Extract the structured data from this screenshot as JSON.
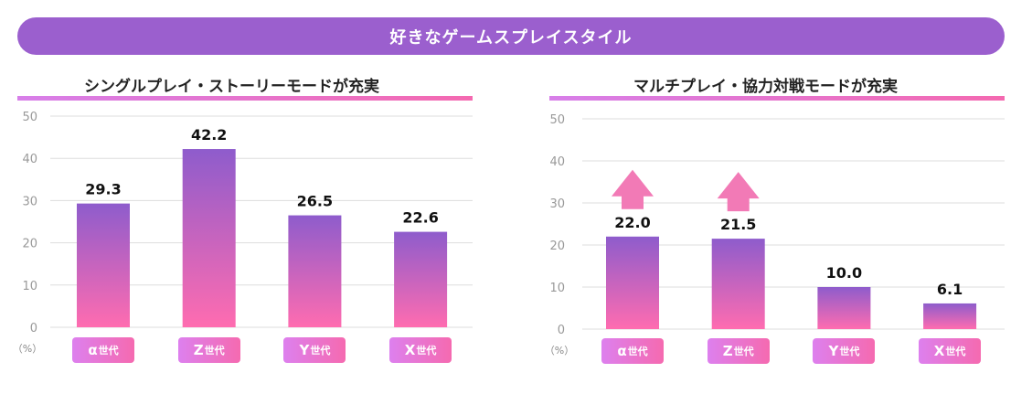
{
  "header": {
    "title": "好きなゲームスプレイスタイル"
  },
  "unit": "（%）",
  "colors": {
    "banner": "#9b5fce",
    "bar_top": "#8e5ccc",
    "bar_bottom": "#ff6cb0",
    "arrow": "#f27ab6",
    "grid": "#dddddd"
  },
  "chart_data": [
    {
      "type": "bar",
      "title": "シングルプレイ・ストーリーモードが充実",
      "categories": [
        "α世代",
        "Z世代",
        "Y世代",
        "X世代"
      ],
      "category_parts": [
        [
          "α",
          "世代"
        ],
        [
          "Z",
          "世代"
        ],
        [
          "Y",
          "世代"
        ],
        [
          "X",
          "世代"
        ]
      ],
      "values": [
        29.3,
        42.2,
        26.5,
        22.6
      ],
      "value_labels": [
        "29.3",
        "42.2",
        "26.5",
        "22.6"
      ],
      "ylim": [
        0,
        50
      ],
      "yticks": [
        0,
        10,
        20,
        30,
        40,
        50
      ],
      "ylabel": "（%）",
      "up_arrows": [
        false,
        false,
        false,
        false
      ]
    },
    {
      "type": "bar",
      "title": "マルチプレイ・協力対戦モードが充実",
      "categories": [
        "α世代",
        "Z世代",
        "Y世代",
        "X世代"
      ],
      "category_parts": [
        [
          "α",
          "世代"
        ],
        [
          "Z",
          "世代"
        ],
        [
          "Y",
          "世代"
        ],
        [
          "X",
          "世代"
        ]
      ],
      "values": [
        22.0,
        21.5,
        10.0,
        6.1
      ],
      "value_labels": [
        "22.0",
        "21.5",
        "10.0",
        "6.1"
      ],
      "ylim": [
        0,
        50
      ],
      "yticks": [
        0,
        10,
        20,
        30,
        40,
        50
      ],
      "ylabel": "（%）",
      "up_arrows": [
        true,
        true,
        false,
        false
      ]
    }
  ]
}
